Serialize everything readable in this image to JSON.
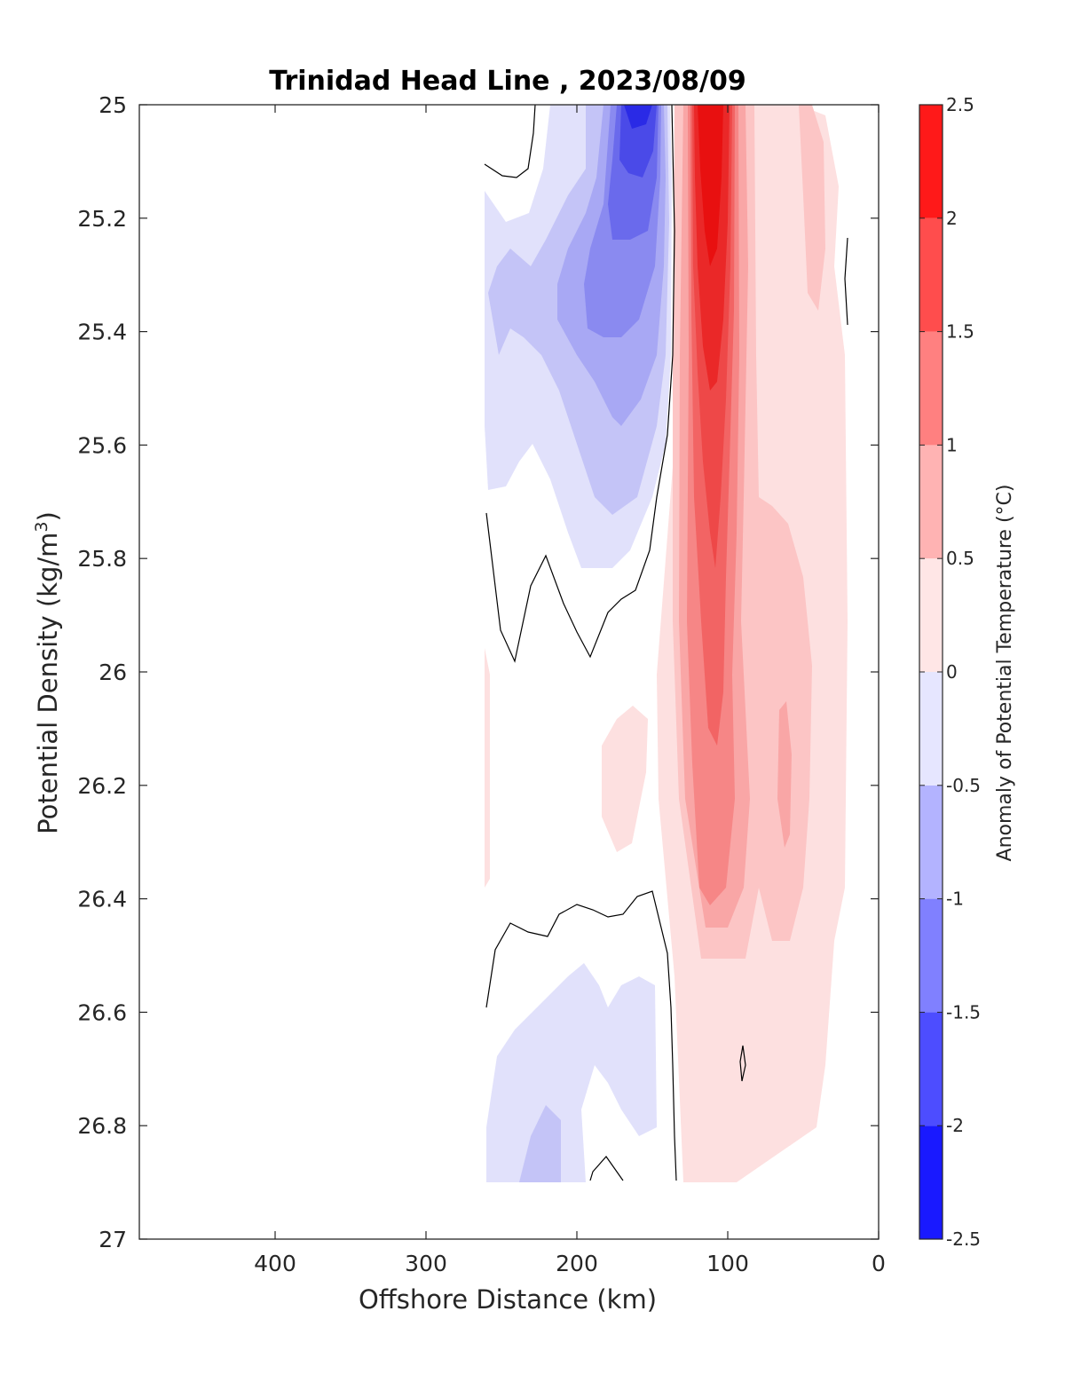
{
  "chart_data": {
    "type": "heatmap",
    "title": "Trinidad Head Line , 2023/08/09",
    "xlabel": "Offshore Distance (km)",
    "ylabel_main": "Potential Density (kg/m",
    "ylabel_sup": "3",
    "ylabel_end": ")",
    "colorbar_label": "Anomaly of Potential Temperature (°C)",
    "xlim": [
      490,
      0
    ],
    "ylim": [
      25,
      27
    ],
    "y_reversed": true,
    "x_reversed": true,
    "xticks": [
      400,
      300,
      200,
      100,
      0
    ],
    "xtick_labels": [
      "400",
      "300",
      "200",
      "100",
      "0"
    ],
    "yticks": [
      25,
      25.2,
      25.4,
      25.6,
      25.8,
      26,
      26.2,
      26.4,
      26.6,
      26.8,
      27
    ],
    "ytick_labels": [
      "25",
      "25.2",
      "25.4",
      "25.6",
      "25.8",
      "26",
      "26.2",
      "26.4",
      "26.6",
      "26.8",
      "27"
    ],
    "colorbar_range": [
      -2.5,
      2.5
    ],
    "colorbar_levels": [
      -2.5,
      -2.25,
      -2,
      -1.75,
      -1.5,
      -1.25,
      -1,
      -0.75,
      -0.5,
      -0.25,
      0.25,
      0.5,
      0.75,
      1,
      1.25,
      1.5,
      1.75,
      2,
      2.25,
      2.5
    ],
    "colorbar_ticks": [
      2.5,
      2,
      1.5,
      1,
      0.5,
      0,
      -0.5,
      -1,
      -1.5,
      -2,
      -2.5
    ],
    "colorbar_tick_labels": [
      "2.5",
      "2",
      "1.5",
      "1",
      "0.5",
      "0",
      "-0.5",
      "-1",
      "-1.5",
      "-2",
      "-2.5"
    ],
    "colormap": "blue-white-red diverging",
    "zero_contour": true,
    "data_extent": {
      "x": [
        260,
        20
      ],
      "y": [
        25,
        26.9
      ]
    },
    "features": [
      {
        "name": "warm core",
        "x": 110,
        "y_range": [
          25,
          26.9
        ],
        "max_anomaly": 2.5
      },
      {
        "name": "cold core",
        "x": 165,
        "y_range": [
          25,
          25.4
        ],
        "min_anomaly": -2.0
      },
      {
        "name": "deep cold patch",
        "x": 225,
        "y_range": [
          26.5,
          26.9
        ],
        "min_anomaly": -0.75
      }
    ],
    "grid": false
  }
}
